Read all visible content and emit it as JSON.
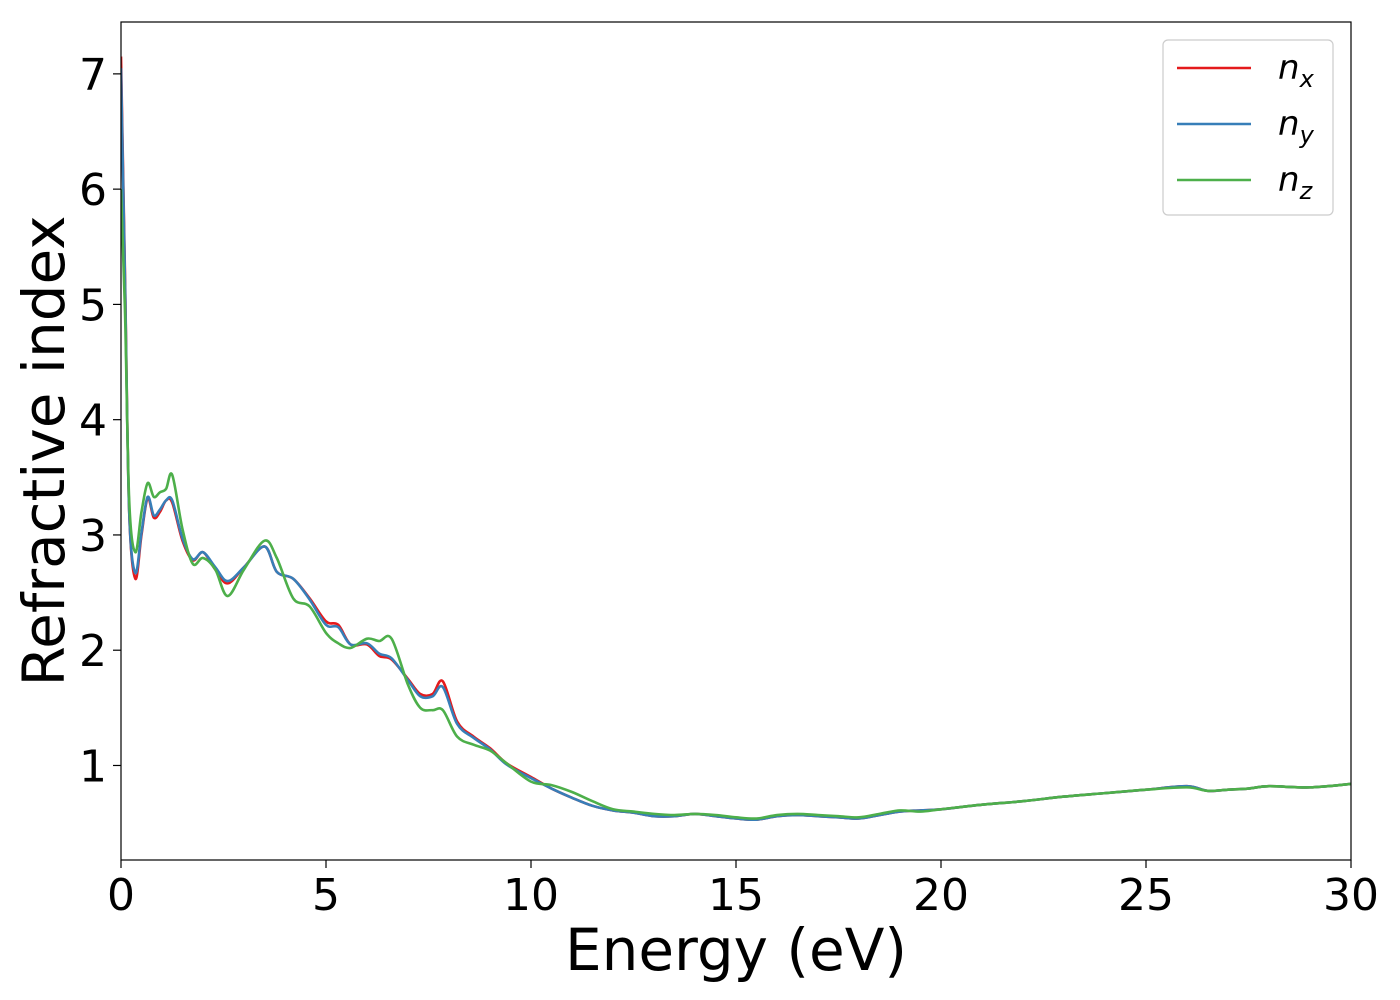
{
  "chart_data": {
    "type": "line",
    "xlabel": "Energy (eV)",
    "ylabel": "Refractive index",
    "xlim": [
      0,
      30
    ],
    "ylim": [
      0.18,
      7.45
    ],
    "xticks": [
      0,
      5,
      10,
      15,
      20,
      25,
      30
    ],
    "xtick_labels": [
      "0",
      "5",
      "10",
      "15",
      "20",
      "25",
      "30"
    ],
    "yticks": [
      1,
      2,
      3,
      4,
      5,
      6,
      7
    ],
    "ytick_labels": [
      "1",
      "2",
      "3",
      "4",
      "5",
      "6",
      "7"
    ],
    "grid": false,
    "legend_position": "top-right",
    "series": [
      {
        "name": "n_x",
        "label_base": "n",
        "label_sub": "x",
        "color": "#e41a1c",
        "x": [
          0,
          0.1,
          0.2,
          0.35,
          0.5,
          0.65,
          0.8,
          0.95,
          1.1,
          1.25,
          1.5,
          1.75,
          2.0,
          2.3,
          2.6,
          3.0,
          3.5,
          3.8,
          4.2,
          4.6,
          5.0,
          5.3,
          5.6,
          6.0,
          6.3,
          6.6,
          7.0,
          7.3,
          7.6,
          7.85,
          8.2,
          8.6,
          9.0,
          9.4,
          10.0,
          10.5,
          11.0,
          11.5,
          12.0,
          12.5,
          13.0,
          13.5,
          14.0,
          14.5,
          15.0,
          15.5,
          16.0,
          16.5,
          17.0,
          17.5,
          18.0,
          18.5,
          19.0,
          19.5,
          20.0,
          21.0,
          22.0,
          23.0,
          24.0,
          25.0,
          26.0,
          26.5,
          27.0,
          27.5,
          28.0,
          29.0,
          30.0
        ],
        "y": [
          7.15,
          5.2,
          3.2,
          2.62,
          3.0,
          3.32,
          3.15,
          3.2,
          3.3,
          3.28,
          2.95,
          2.78,
          2.85,
          2.7,
          2.58,
          2.72,
          2.9,
          2.68,
          2.62,
          2.45,
          2.25,
          2.22,
          2.05,
          2.05,
          1.95,
          1.92,
          1.75,
          1.62,
          1.62,
          1.73,
          1.38,
          1.25,
          1.15,
          1.02,
          0.9,
          0.8,
          0.72,
          0.65,
          0.61,
          0.59,
          0.56,
          0.56,
          0.58,
          0.56,
          0.54,
          0.53,
          0.56,
          0.57,
          0.56,
          0.55,
          0.54,
          0.57,
          0.6,
          0.61,
          0.62,
          0.66,
          0.69,
          0.73,
          0.76,
          0.79,
          0.82,
          0.78,
          0.79,
          0.8,
          0.82,
          0.81,
          0.84
        ]
      },
      {
        "name": "n_y",
        "label_base": "n",
        "label_sub": "y",
        "color": "#377eb8",
        "x": [
          0,
          0.1,
          0.2,
          0.35,
          0.5,
          0.65,
          0.8,
          0.95,
          1.1,
          1.25,
          1.5,
          1.75,
          2.0,
          2.3,
          2.6,
          3.0,
          3.5,
          3.8,
          4.2,
          4.6,
          5.0,
          5.3,
          5.6,
          6.0,
          6.3,
          6.6,
          7.0,
          7.3,
          7.6,
          7.85,
          8.2,
          8.6,
          9.0,
          9.4,
          10.0,
          10.5,
          11.0,
          11.5,
          12.0,
          12.5,
          13.0,
          13.5,
          14.0,
          14.5,
          15.0,
          15.5,
          16.0,
          16.5,
          17.0,
          17.5,
          18.0,
          18.5,
          19.0,
          19.5,
          20.0,
          21.0,
          22.0,
          23.0,
          24.0,
          25.0,
          26.0,
          26.5,
          27.0,
          27.5,
          28.0,
          29.0,
          30.0
        ],
        "y": [
          7.05,
          5.15,
          3.2,
          2.67,
          3.02,
          3.33,
          3.17,
          3.22,
          3.3,
          3.3,
          2.97,
          2.79,
          2.85,
          2.72,
          2.6,
          2.72,
          2.9,
          2.68,
          2.62,
          2.44,
          2.22,
          2.2,
          2.05,
          2.06,
          1.97,
          1.93,
          1.74,
          1.6,
          1.6,
          1.68,
          1.36,
          1.24,
          1.14,
          1.01,
          0.89,
          0.8,
          0.72,
          0.65,
          0.61,
          0.59,
          0.56,
          0.56,
          0.58,
          0.56,
          0.54,
          0.53,
          0.56,
          0.57,
          0.56,
          0.55,
          0.54,
          0.57,
          0.6,
          0.61,
          0.62,
          0.66,
          0.69,
          0.73,
          0.76,
          0.79,
          0.82,
          0.78,
          0.79,
          0.8,
          0.82,
          0.81,
          0.84
        ]
      },
      {
        "name": "n_z",
        "label_base": "n",
        "label_sub": "z",
        "color": "#4daf4a",
        "x": [
          0,
          0.1,
          0.2,
          0.35,
          0.5,
          0.65,
          0.8,
          0.95,
          1.1,
          1.25,
          1.5,
          1.75,
          2.0,
          2.3,
          2.6,
          3.0,
          3.5,
          3.8,
          4.2,
          4.6,
          5.0,
          5.3,
          5.6,
          6.0,
          6.3,
          6.6,
          7.0,
          7.3,
          7.6,
          7.85,
          8.2,
          8.6,
          9.0,
          9.4,
          10.0,
          10.5,
          11.0,
          11.5,
          12.0,
          12.5,
          13.0,
          13.5,
          14.0,
          14.5,
          15.0,
          15.5,
          16.0,
          16.5,
          17.0,
          17.5,
          18.0,
          18.5,
          19.0,
          19.5,
          20.0,
          21.0,
          22.0,
          23.0,
          24.0,
          25.0,
          26.0,
          26.5,
          27.0,
          27.5,
          28.0,
          29.0,
          30.0
        ],
        "y": [
          6.0,
          4.9,
          3.3,
          2.85,
          3.2,
          3.45,
          3.33,
          3.37,
          3.4,
          3.52,
          3.05,
          2.75,
          2.8,
          2.7,
          2.47,
          2.7,
          2.95,
          2.8,
          2.45,
          2.38,
          2.15,
          2.06,
          2.02,
          2.1,
          2.08,
          2.1,
          1.7,
          1.5,
          1.48,
          1.48,
          1.25,
          1.18,
          1.13,
          1.02,
          0.86,
          0.83,
          0.77,
          0.69,
          0.62,
          0.6,
          0.58,
          0.57,
          0.58,
          0.57,
          0.55,
          0.54,
          0.57,
          0.58,
          0.57,
          0.56,
          0.55,
          0.58,
          0.61,
          0.6,
          0.62,
          0.66,
          0.69,
          0.73,
          0.76,
          0.79,
          0.81,
          0.78,
          0.79,
          0.8,
          0.82,
          0.81,
          0.84
        ]
      }
    ]
  }
}
